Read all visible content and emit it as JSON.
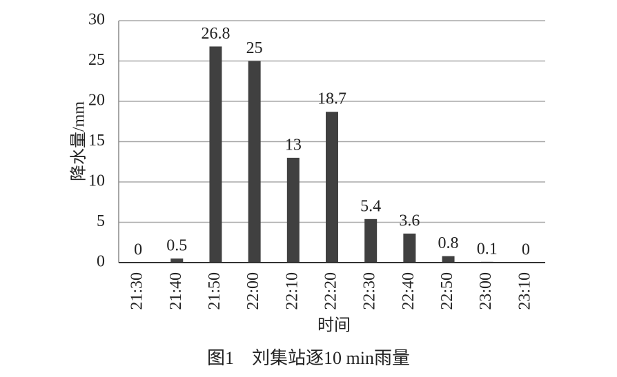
{
  "chart_data": {
    "type": "bar",
    "title": "图1　刘集站逐10 min雨量",
    "x_label": "时间",
    "y_label": "降水量/mm",
    "categories": [
      "21:30",
      "21:40",
      "21:50",
      "22:00",
      "22:10",
      "22:20",
      "22:30",
      "22:40",
      "22:50",
      "23:00",
      "23:10"
    ],
    "values": [
      0,
      0.5,
      26.8,
      25,
      13,
      18.7,
      5.4,
      3.6,
      0.8,
      0.1,
      0
    ],
    "color": "#404040",
    "ylim": [
      0,
      30
    ],
    "yticks": [
      0,
      5,
      10,
      15,
      20,
      25,
      30
    ],
    "grid": true
  }
}
